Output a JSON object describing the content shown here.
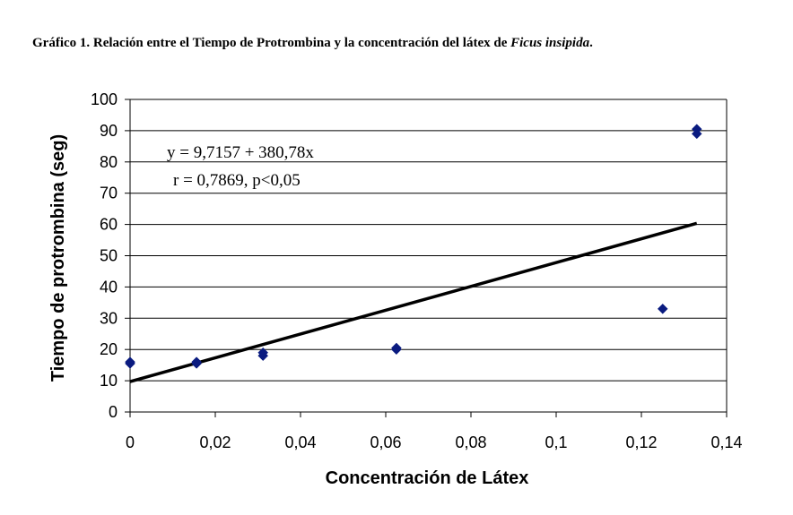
{
  "page": {
    "title_main": "Gráfico 1. Relación entre el Tiempo de Protrombina y la concentración del látex de ",
    "title_italic": "Ficus insipida",
    "title_end": "."
  },
  "chart_data": {
    "type": "scatter",
    "xlabel": "Concentración de Látex",
    "ylabel": "Tiempo de protrombina (seg)",
    "xlim": [
      0,
      0.14
    ],
    "ylim": [
      0,
      100
    ],
    "x_ticks": [
      0,
      0.02,
      0.04,
      0.06,
      0.08,
      0.1,
      0.12,
      0.14
    ],
    "x_tick_labels": [
      "0",
      "0,02",
      "0,04",
      "0,06",
      "0,08",
      "0,1",
      "0,12",
      "0,14"
    ],
    "y_ticks": [
      0,
      10,
      20,
      30,
      40,
      50,
      60,
      70,
      80,
      90,
      100
    ],
    "y_tick_labels": [
      "0",
      "10",
      "20",
      "30",
      "40",
      "50",
      "60",
      "70",
      "80",
      "90",
      "100"
    ],
    "grid": "horizontal",
    "legend": "none",
    "points": [
      {
        "x": 0.0,
        "y": 15.5
      },
      {
        "x": 0.0,
        "y": 16.0
      },
      {
        "x": 0.0156,
        "y": 15.5
      },
      {
        "x": 0.0156,
        "y": 16.0
      },
      {
        "x": 0.0312,
        "y": 18.0
      },
      {
        "x": 0.0312,
        "y": 19.0
      },
      {
        "x": 0.0625,
        "y": 20.0
      },
      {
        "x": 0.0625,
        "y": 20.5
      },
      {
        "x": 0.125,
        "y": 33.0
      },
      {
        "x": 0.133,
        "y": 89.0
      },
      {
        "x": 0.133,
        "y": 90.5
      }
    ],
    "marker_color": "#0a1b80",
    "trendline": {
      "intercept": 9.7157,
      "slope": 380.78,
      "x_start": 0,
      "x_end": 0.133
    },
    "annotations": {
      "equation": "y = 9,7157 + 380,78x",
      "stats": "r = 0,7869, p<0,05"
    }
  }
}
